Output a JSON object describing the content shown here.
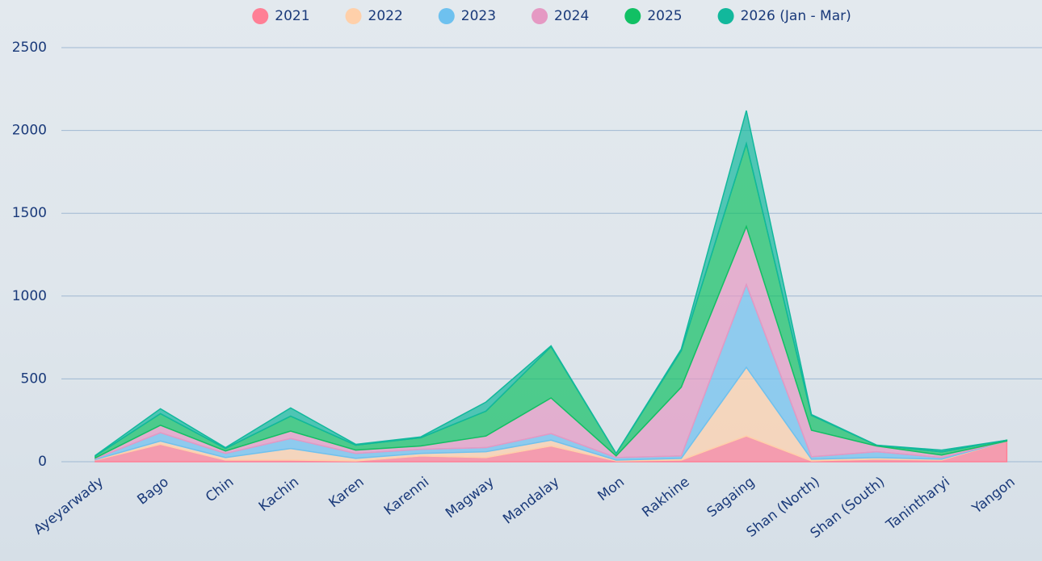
{
  "chart_data": {
    "type": "stacked_area",
    "categories": [
      "Ayeyarwady",
      "Bago",
      "Chin",
      "Kachin",
      "Karen",
      "Karenni",
      "Magway",
      "Mandalay",
      "Mon",
      "Rakhine",
      "Sagaing",
      "Shan (North)",
      "Shan (South)",
      "Tanintharyi",
      "Yangon"
    ],
    "series": [
      {
        "name": "2021",
        "color": "#ff7f95",
        "values": [
          10,
          105,
          10,
          10,
          5,
          35,
          25,
          95,
          5,
          10,
          155,
          5,
          15,
          10,
          125
        ]
      },
      {
        "name": "2022",
        "color": "#ffd0aa",
        "values": [
          3,
          20,
          15,
          70,
          15,
          15,
          35,
          35,
          5,
          10,
          415,
          10,
          10,
          5,
          0
        ]
      },
      {
        "name": "2023",
        "color": "#6ec1ef",
        "values": [
          5,
          50,
          25,
          60,
          30,
          25,
          25,
          40,
          15,
          15,
          500,
          15,
          35,
          10,
          0
        ]
      },
      {
        "name": "2024",
        "color": "#e599c3",
        "values": [
          5,
          45,
          15,
          45,
          20,
          20,
          70,
          215,
          10,
          415,
          350,
          160,
          35,
          15,
          0
        ]
      },
      {
        "name": "2025",
        "color": "#11c064",
        "values": [
          12,
          70,
          15,
          90,
          30,
          50,
          150,
          310,
          15,
          220,
          500,
          90,
          5,
          20,
          5
        ]
      },
      {
        "name": "2026 (Jan - Mar)",
        "color": "#12b89c",
        "values": [
          3,
          30,
          5,
          50,
          5,
          5,
          55,
          5,
          0,
          10,
          200,
          5,
          0,
          10,
          0
        ]
      }
    ],
    "ylim": [
      0,
      2500
    ],
    "yticks": [
      0,
      500,
      1000,
      1500,
      2000,
      2500
    ],
    "grid": true,
    "legend": "top"
  }
}
